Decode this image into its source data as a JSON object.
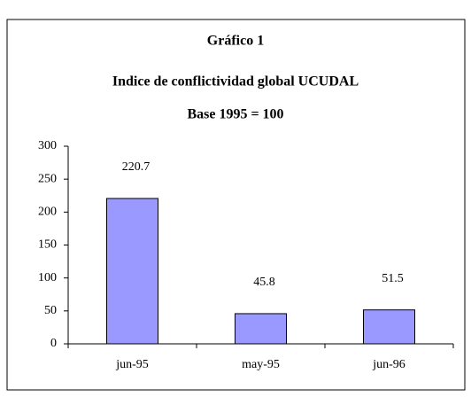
{
  "chart_data": {
    "type": "bar",
    "title": [
      "Gráfico 1",
      "Indice de conflictividad global UCUDAL",
      "Base 1995 = 100"
    ],
    "categories": [
      "jun-95",
      "may-95",
      "jun-96"
    ],
    "values": [
      220.7,
      45.8,
      51.5
    ],
    "color": "#9999ff",
    "ylim": [
      0,
      300
    ],
    "yticks": [
      0,
      50,
      100,
      150,
      200,
      250,
      300
    ],
    "grid": false
  }
}
